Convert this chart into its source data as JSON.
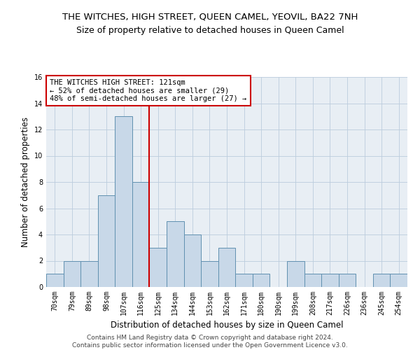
{
  "title": "THE WITCHES, HIGH STREET, QUEEN CAMEL, YEOVIL, BA22 7NH",
  "subtitle": "Size of property relative to detached houses in Queen Camel",
  "xlabel": "Distribution of detached houses by size in Queen Camel",
  "ylabel": "Number of detached properties",
  "categories": [
    "70sqm",
    "79sqm",
    "89sqm",
    "98sqm",
    "107sqm",
    "116sqm",
    "125sqm",
    "134sqm",
    "144sqm",
    "153sqm",
    "162sqm",
    "171sqm",
    "180sqm",
    "190sqm",
    "199sqm",
    "208sqm",
    "217sqm",
    "226sqm",
    "236sqm",
    "245sqm",
    "254sqm"
  ],
  "values": [
    1,
    2,
    2,
    7,
    13,
    8,
    3,
    5,
    4,
    2,
    3,
    1,
    1,
    0,
    2,
    1,
    1,
    1,
    0,
    1,
    1
  ],
  "bar_color": "#c8d8e8",
  "bar_edge_color": "#6090b0",
  "vline_x": 5.5,
  "vline_color": "#cc0000",
  "annotation_text": "THE WITCHES HIGH STREET: 121sqm\n← 52% of detached houses are smaller (29)\n48% of semi-detached houses are larger (27) →",
  "annotation_box_color": "#ffffff",
  "annotation_box_edge": "#cc0000",
  "ylim": [
    0,
    16
  ],
  "yticks": [
    0,
    2,
    4,
    6,
    8,
    10,
    12,
    14,
    16
  ],
  "grid_color": "#bbccdd",
  "background_color": "#e8eef4",
  "footer": "Contains HM Land Registry data © Crown copyright and database right 2024.\nContains public sector information licensed under the Open Government Licence v3.0.",
  "title_fontsize": 9.5,
  "subtitle_fontsize": 9,
  "xlabel_fontsize": 8.5,
  "ylabel_fontsize": 8.5,
  "tick_fontsize": 7,
  "annotation_fontsize": 7.5,
  "footer_fontsize": 6.5
}
